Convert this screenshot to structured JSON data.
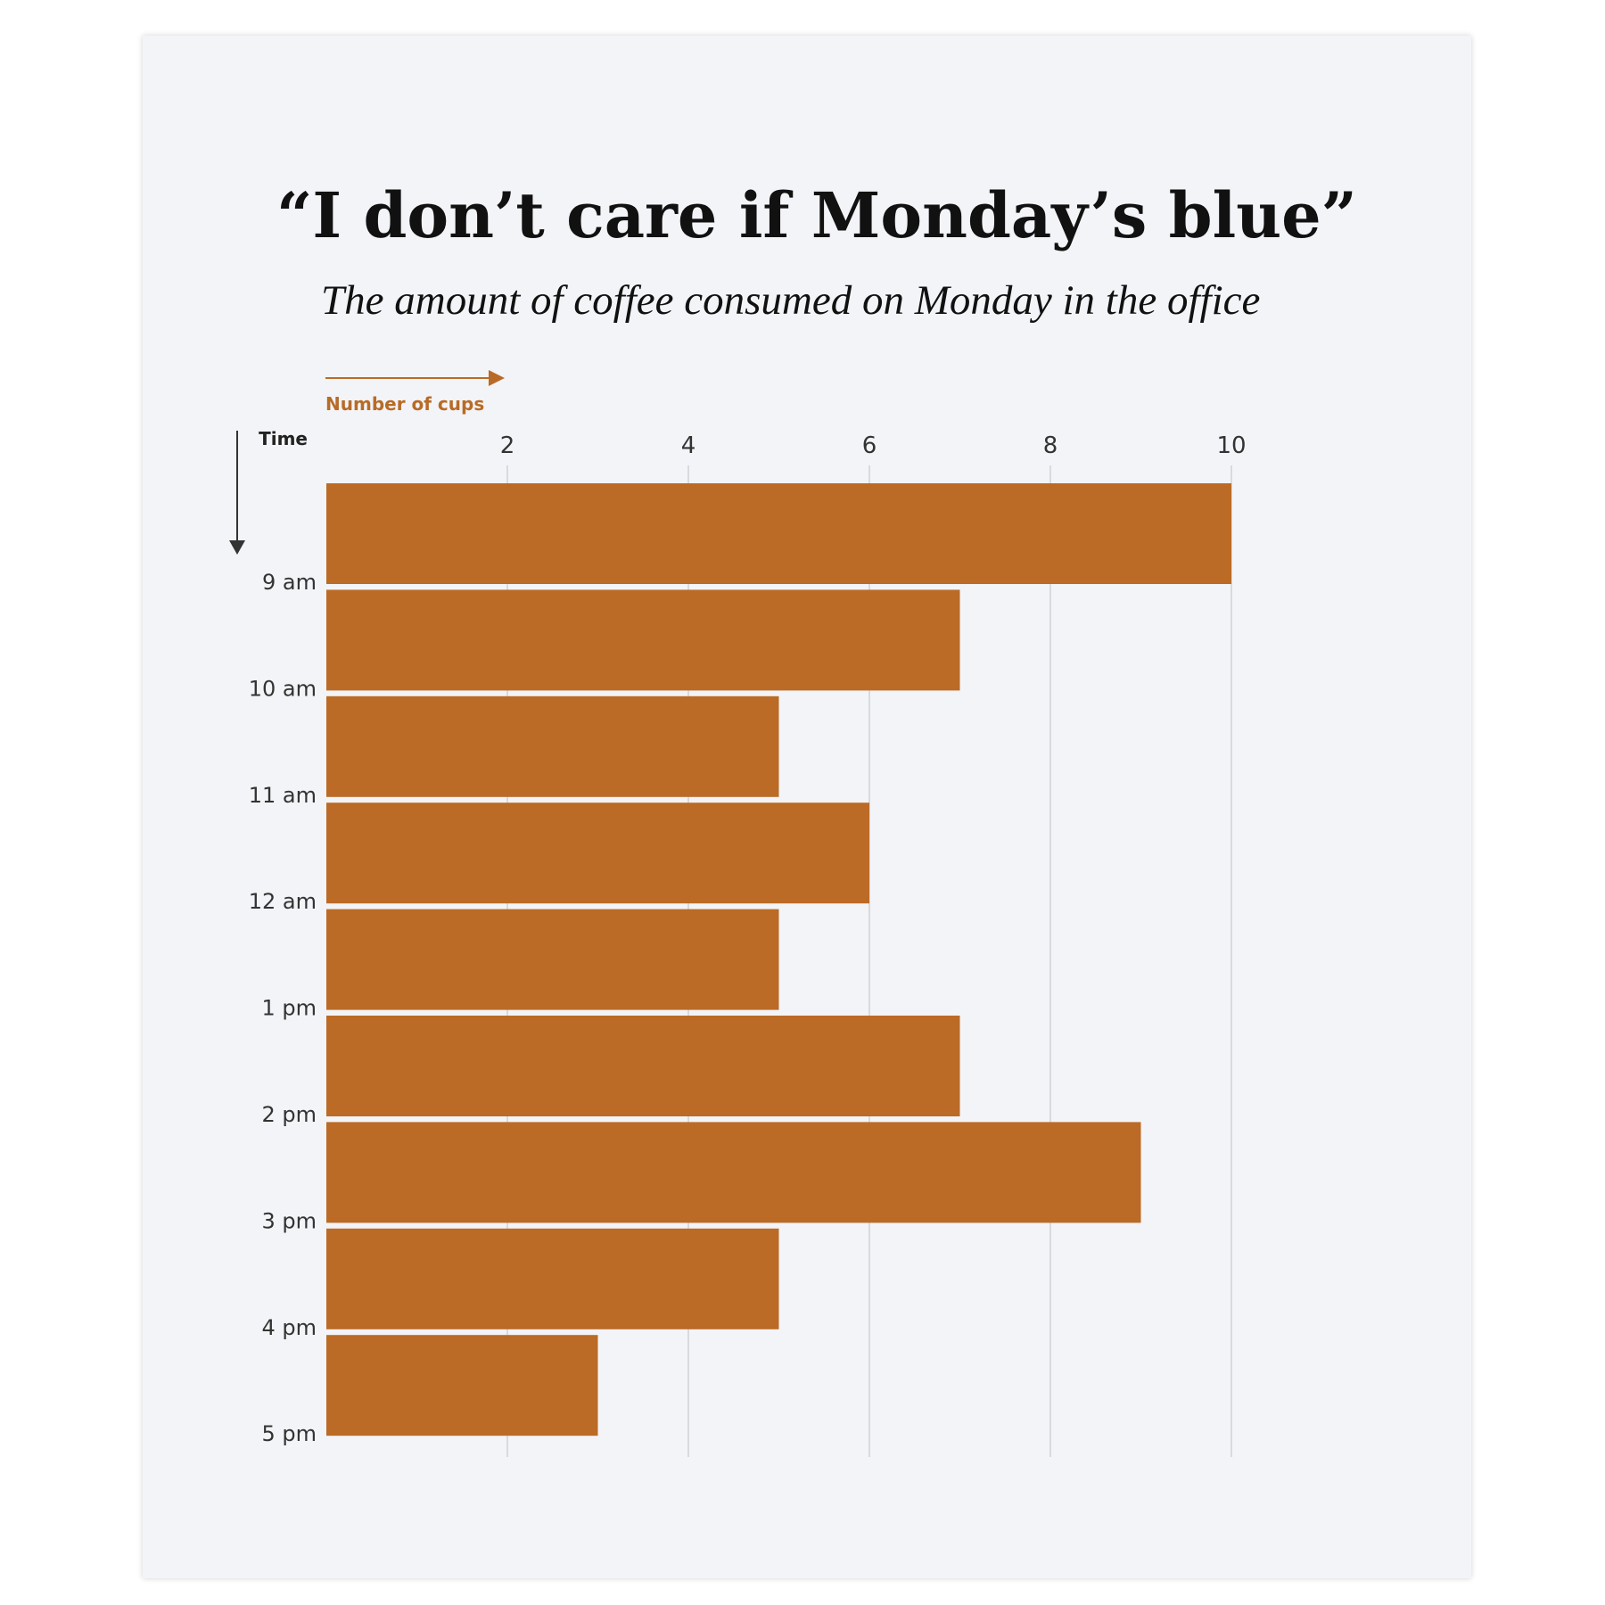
{
  "chart_data": {
    "type": "bar",
    "orientation": "horizontal",
    "title": "“I don’t care if Monday’s blue”",
    "subtitle": "The amount of coffee consumed on Monday in the office",
    "xlabel": "Number of cups",
    "ylabel": "Time",
    "categories": [
      "9 am",
      "10 am",
      "11 am",
      "12 am",
      "1 pm",
      "2 pm",
      "3 pm",
      "4 pm",
      "5 pm"
    ],
    "values": [
      10,
      7,
      5,
      6,
      5,
      7,
      9,
      5,
      3
    ],
    "xlim": [
      0,
      10
    ],
    "xticks": [
      2,
      4,
      6,
      8,
      10
    ],
    "grid": true,
    "colors": {
      "bar": "#bb6b26",
      "grid": "#c8c8cc",
      "axis_arrow_x": "#b86b27",
      "axis_arrow_y": "#333333",
      "background": "#f3f4f7"
    }
  }
}
